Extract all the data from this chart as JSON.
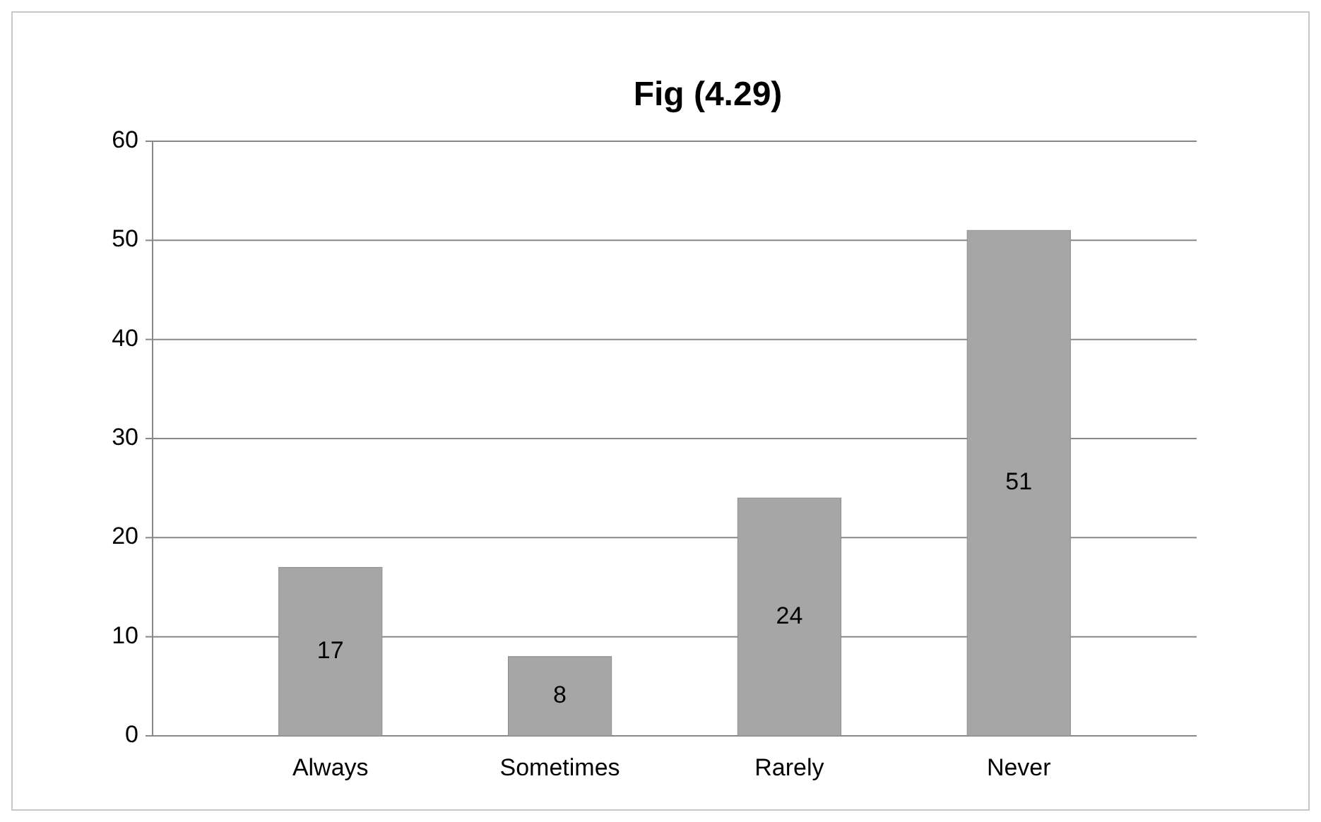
{
  "chart_data": {
    "type": "bar",
    "title": "Fig (4.29)",
    "categories": [
      "Always",
      "Sometimes",
      "Rarely",
      "Never"
    ],
    "values": [
      17,
      8,
      24,
      51
    ],
    "color": "#a6a6a6",
    "ylim": [
      0,
      60
    ],
    "yticks": [
      0,
      10,
      20,
      30,
      40,
      50,
      60
    ],
    "grid": "y",
    "data_labels": true
  }
}
